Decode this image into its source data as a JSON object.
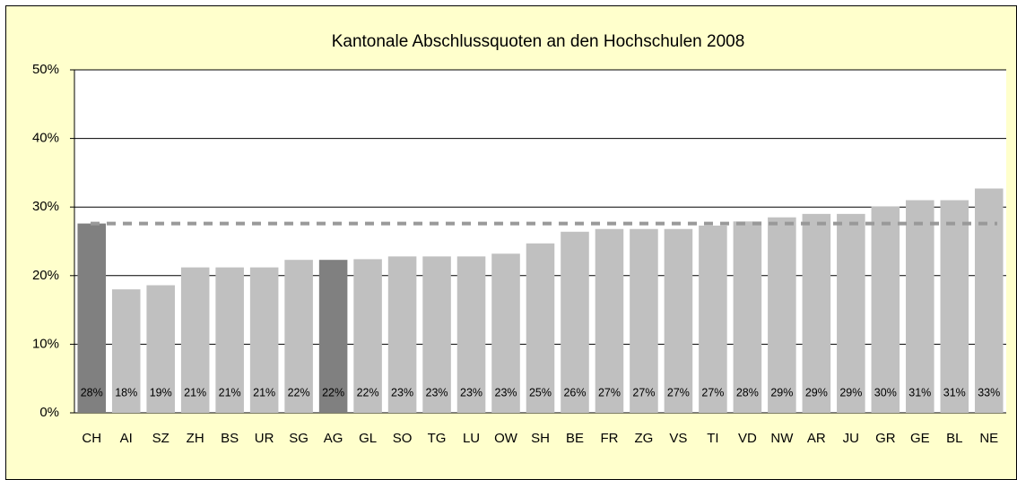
{
  "chart_data": {
    "type": "bar",
    "title": "Kantonale Abschlussquoten an den Hochschulen 2008",
    "categories": [
      "CH",
      "AI",
      "SZ",
      "ZH",
      "BS",
      "UR",
      "SG",
      "AG",
      "GL",
      "SO",
      "TG",
      "LU",
      "OW",
      "SH",
      "BE",
      "FR",
      "ZG",
      "VS",
      "TI",
      "VD",
      "NW",
      "AR",
      "JU",
      "GR",
      "GE",
      "BL",
      "NE"
    ],
    "values": [
      27.6,
      18,
      18.6,
      21.2,
      21.2,
      21.2,
      22.3,
      22.3,
      22.4,
      22.8,
      22.8,
      22.8,
      23.2,
      24.7,
      26.4,
      26.8,
      26.8,
      26.8,
      27.3,
      27.9,
      28.5,
      29,
      29,
      30.1,
      31,
      31,
      32.7
    ],
    "value_labels": [
      "28%",
      "18%",
      "19%",
      "21%",
      "21%",
      "21%",
      "22%",
      "22%",
      "22%",
      "23%",
      "23%",
      "23%",
      "23%",
      "25%",
      "26%",
      "27%",
      "27%",
      "27%",
      "27%",
      "28%",
      "29%",
      "29%",
      "29%",
      "30%",
      "31%",
      "31%",
      "33%"
    ],
    "colors": [
      "#808080",
      "#c0c0c0",
      "#c0c0c0",
      "#c0c0c0",
      "#c0c0c0",
      "#c0c0c0",
      "#c0c0c0",
      "#808080",
      "#c0c0c0",
      "#c0c0c0",
      "#c0c0c0",
      "#c0c0c0",
      "#c0c0c0",
      "#c0c0c0",
      "#c0c0c0",
      "#c0c0c0",
      "#c0c0c0",
      "#c0c0c0",
      "#c0c0c0",
      "#c0c0c0",
      "#c0c0c0",
      "#c0c0c0",
      "#c0c0c0",
      "#c0c0c0",
      "#c0c0c0",
      "#c0c0c0",
      "#c0c0c0"
    ],
    "reference_line": {
      "value": 27.6,
      "color": "#999999",
      "dashed": true
    },
    "ylim": [
      0,
      50
    ],
    "yticks": [
      {
        "value": 0,
        "label": "0%"
      },
      {
        "value": 10,
        "label": "10%"
      },
      {
        "value": 20,
        "label": "20%"
      },
      {
        "value": 30,
        "label": "30%"
      },
      {
        "value": 40,
        "label": "40%"
      },
      {
        "value": 50,
        "label": "50%"
      }
    ],
    "grid": true
  }
}
